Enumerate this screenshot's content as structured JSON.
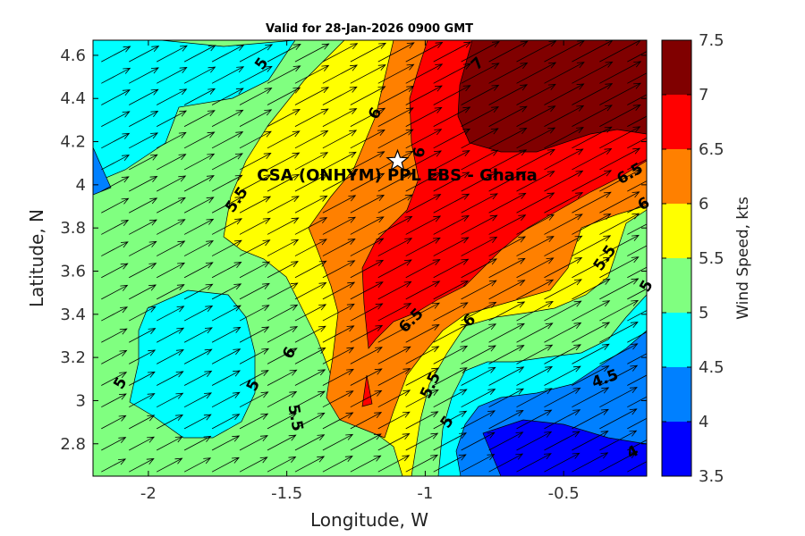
{
  "chart_data": {
    "type": "filled-contour map with wind vectors",
    "title": "Valid for 28-Jan-2026 0900 GMT",
    "xlabel": "Longitude, W",
    "ylabel": "Latitude, N",
    "colorbar_label": "Wind Speed, kts",
    "xlim": [
      -2.2,
      -0.2
    ],
    "ylim": [
      2.65,
      4.67
    ],
    "x_ticks": [
      {
        "value": -2,
        "label": "-2"
      },
      {
        "value": -1.5,
        "label": "-1.5"
      },
      {
        "value": -1,
        "label": "-1"
      },
      {
        "value": -0.5,
        "label": "-0.5"
      }
    ],
    "y_ticks": [
      {
        "value": 2.8,
        "label": "2.8"
      },
      {
        "value": 3.0,
        "label": "3"
      },
      {
        "value": 3.2,
        "label": "3.2"
      },
      {
        "value": 3.4,
        "label": "3.4"
      },
      {
        "value": 3.6,
        "label": "3.6"
      },
      {
        "value": 3.8,
        "label": "3.8"
      },
      {
        "value": 4.0,
        "label": "4"
      },
      {
        "value": 4.2,
        "label": "4.2"
      },
      {
        "value": 4.4,
        "label": "4.4"
      },
      {
        "value": 4.6,
        "label": "4.6"
      }
    ],
    "colorbar": {
      "levels": [
        3.5,
        4,
        4.5,
        5,
        5.5,
        6,
        6.5,
        7,
        7.5
      ],
      "labels": [
        "3.5",
        "4",
        "4.5",
        "5",
        "5.5",
        "6",
        "6.5",
        "7",
        "7.5"
      ],
      "colors": [
        "#0000ff",
        "#0080ff",
        "#00ffff",
        "#80ff80",
        "#ffff00",
        "#ff8000",
        "#ff0000",
        "#800000"
      ]
    },
    "site": {
      "name": "CSA (ONHYM) PPL EBS  - Ghana",
      "lon": -1.1,
      "lat": 4.11,
      "marker": "star"
    },
    "contour_labels": [
      {
        "text": "5",
        "lon": -1.59,
        "lat": 4.56,
        "angle": -55
      },
      {
        "text": "7",
        "lon": -0.81,
        "lat": 4.56,
        "angle": -45
      },
      {
        "text": "6",
        "lon": -1.18,
        "lat": 4.33,
        "angle": -60
      },
      {
        "text": "6",
        "lon": -1.02,
        "lat": 4.15,
        "angle": -80
      },
      {
        "text": "5.5",
        "lon": -1.68,
        "lat": 3.93,
        "angle": -55
      },
      {
        "text": "6.5",
        "lon": -0.26,
        "lat": 4.05,
        "angle": -30
      },
      {
        "text": "6",
        "lon": -0.21,
        "lat": 3.91,
        "angle": -30
      },
      {
        "text": "5.5",
        "lon": -0.35,
        "lat": 3.66,
        "angle": -55
      },
      {
        "text": "5",
        "lon": -0.2,
        "lat": 3.53,
        "angle": -60
      },
      {
        "text": "6.5",
        "lon": -1.05,
        "lat": 3.37,
        "angle": -45
      },
      {
        "text": "6",
        "lon": -0.84,
        "lat": 3.37,
        "angle": -40
      },
      {
        "text": "6",
        "lon": -1.49,
        "lat": 3.22,
        "angle": -60
      },
      {
        "text": "5.5",
        "lon": -0.98,
        "lat": 3.07,
        "angle": -65
      },
      {
        "text": "5",
        "lon": -2.1,
        "lat": 3.08,
        "angle": -60
      },
      {
        "text": "5",
        "lon": -1.62,
        "lat": 3.07,
        "angle": -65
      },
      {
        "text": "5.5",
        "lon": -1.47,
        "lat": 2.92,
        "angle": 80
      },
      {
        "text": "4.5",
        "lon": -0.35,
        "lat": 3.1,
        "angle": -20
      },
      {
        "text": "5",
        "lon": -0.92,
        "lat": 2.9,
        "angle": -55
      },
      {
        "text": "4",
        "lon": -0.25,
        "lat": 2.76,
        "angle": -30
      }
    ],
    "wind_vectors": {
      "grid_spacing_deg": 0.1,
      "direction": "from the southwest toward the northeast",
      "heading_deg": 62,
      "speed_field": "follows contour bands (approx. 3.5 - 7.5 kts)"
    },
    "regions": [
      {
        "level": "4.5-5",
        "area": "northwest corner"
      },
      {
        "level": "4-4.5",
        "area": "far west near lat 4.0"
      },
      {
        "level": "4.5-5",
        "area": "southwest oval near -1.9, 3.25"
      },
      {
        "level": "5-5.5",
        "area": "west and southwest background"
      },
      {
        "level": "5.5-6",
        "area": "central north-south band"
      },
      {
        "level": "6-6.5",
        "area": "central east band"
      },
      {
        "level": "6.5-7",
        "area": "northeast and central tongue"
      },
      {
        "level": "7-7.5",
        "area": "northeast corner"
      },
      {
        "level": "3.5-4.5",
        "area": "southeast corner"
      }
    ]
  }
}
